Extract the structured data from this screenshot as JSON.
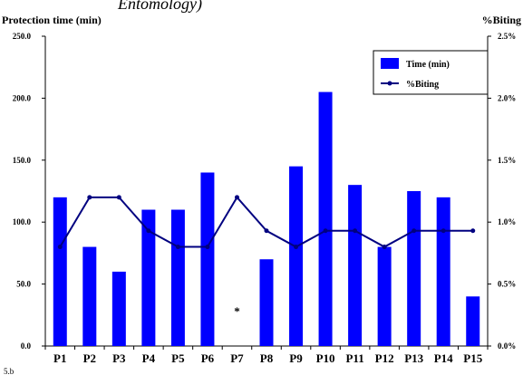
{
  "header_fragment": "Entomology)",
  "corner_fragment": "5.b",
  "chart_data": {
    "type": "bar",
    "categories": [
      "P1",
      "P2",
      "P3",
      "P4",
      "P5",
      "P6",
      "P7",
      "P8",
      "P9",
      "P10",
      "P11",
      "P12",
      "P13",
      "P14",
      "P15"
    ],
    "series": [
      {
        "name": "Time (min)",
        "type": "bar",
        "axis": "left",
        "color": "#0000ff",
        "values": [
          120,
          80,
          60,
          110,
          110,
          140,
          null,
          70,
          145,
          205,
          130,
          80,
          125,
          120,
          40
        ]
      },
      {
        "name": "%Biting",
        "type": "line",
        "axis": "right",
        "color": "#000080",
        "values": [
          0.8,
          1.2,
          1.2,
          0.93,
          0.8,
          0.8,
          1.2,
          0.93,
          0.8,
          0.93,
          0.93,
          0.8,
          0.93,
          0.93,
          0.93
        ]
      }
    ],
    "annotation": "*",
    "annotation_category": "P7",
    "y_left": {
      "label": "Protection time (min)",
      "range": [
        0,
        250
      ],
      "ticks": [
        0,
        50,
        100,
        150,
        200,
        250
      ],
      "tick_labels": [
        "0.0",
        "50.0",
        "100.0",
        "150.0",
        "200.0",
        "250.0"
      ]
    },
    "y_right": {
      "label": "%Biting",
      "range": [
        0,
        2.5
      ],
      "ticks": [
        0,
        0.5,
        1.0,
        1.5,
        2.0,
        2.5
      ],
      "tick_labels": [
        "0.0%",
        "0.5%",
        "1.0%",
        "1.5%",
        "2.0%",
        "2.5%"
      ]
    },
    "legend": {
      "position": "top-right",
      "items": [
        "Time (min)",
        "%Biting"
      ]
    },
    "grid": false
  }
}
